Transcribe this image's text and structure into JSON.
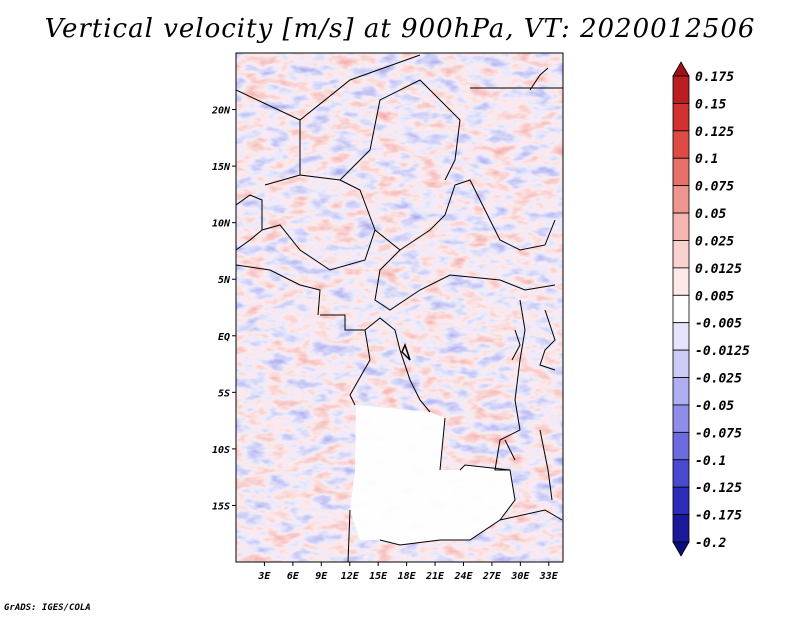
{
  "title": "Vertical velocity [m/s] at 900hPa, VT: 2020012506",
  "footer": "GrADS: IGES/COLA",
  "map": {
    "lon_range": [
      0,
      34.5
    ],
    "lat_range": [
      -20,
      25
    ],
    "x_tick_labels": [
      "3E",
      "6E",
      "9E",
      "12E",
      "15E",
      "18E",
      "21E",
      "24E",
      "27E",
      "30E",
      "33E"
    ],
    "x_tick_values": [
      3,
      6,
      9,
      12,
      15,
      18,
      21,
      24,
      27,
      30,
      33
    ],
    "y_tick_labels": [
      "20N",
      "15N",
      "10N",
      "5N",
      "EQ",
      "5S",
      "10S",
      "15S"
    ],
    "y_tick_values": [
      20,
      15,
      10,
      5,
      0,
      -5,
      -10,
      -15
    ]
  },
  "colorbar": {
    "labels": [
      "0.175",
      "0.15",
      "0.125",
      "0.1",
      "0.075",
      "0.05",
      "0.025",
      "0.0125",
      "0.005",
      "-0.005",
      "-0.0125",
      "-0.025",
      "-0.05",
      "-0.075",
      "-0.1",
      "-0.125",
      "-0.175",
      "-0.2"
    ],
    "colors": [
      "#a01218",
      "#bb1e22",
      "#d2322f",
      "#e04a45",
      "#e8706a",
      "#ef9590",
      "#f5b6b1",
      "#f9d2cf",
      "#fce9e8",
      "#ffffff",
      "#e4e4fb",
      "#ccccf7",
      "#aeaef2",
      "#8e8eea",
      "#6c6ce0",
      "#4a4ad0",
      "#2c2cb8",
      "#19199a",
      "#0e0e7a"
    ]
  }
}
